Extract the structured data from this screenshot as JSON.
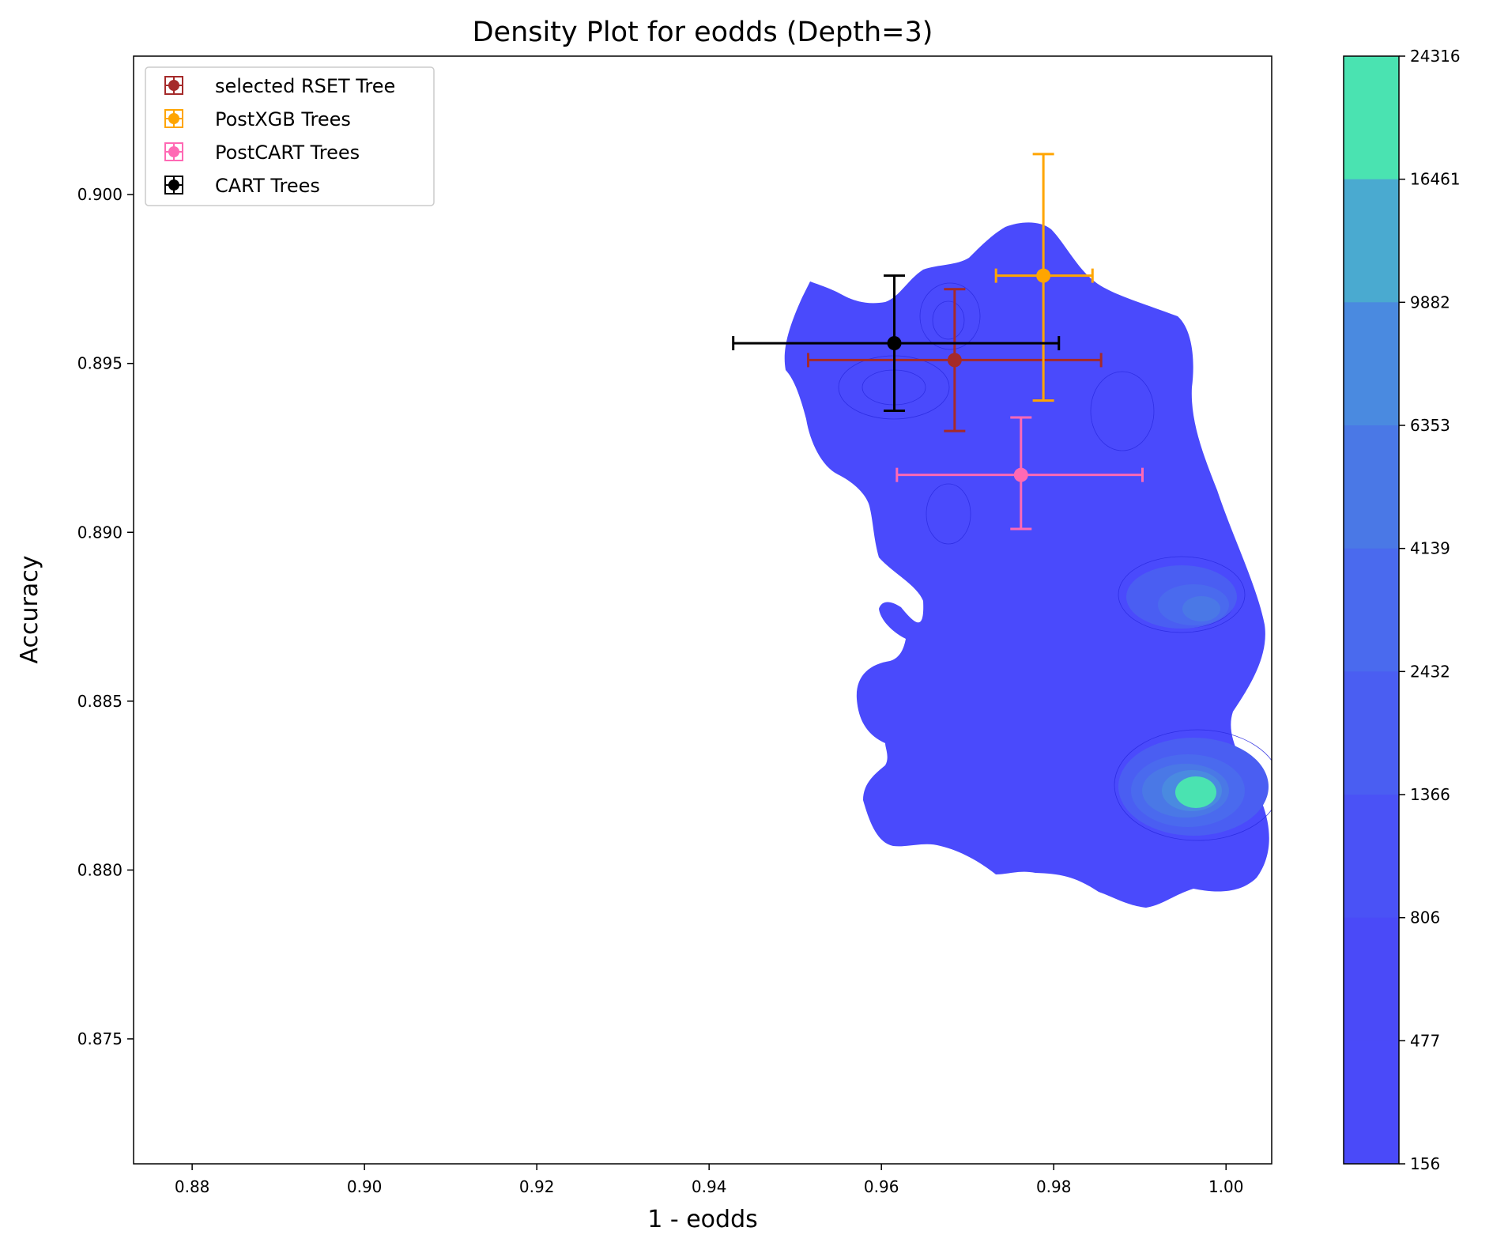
{
  "chart_data": {
    "type": "scatter",
    "title": "Density Plot for eodds (Depth=3)",
    "xlabel": "1 - eodds",
    "ylabel": "Accuracy",
    "xlim": [
      0.8732,
      1.0053
    ],
    "ylim": [
      0.8713,
      0.9041
    ],
    "x_ticks": [
      "0.88",
      "0.90",
      "0.92",
      "0.94",
      "0.96",
      "0.98",
      "1.00"
    ],
    "y_ticks": [
      "0.875",
      "0.880",
      "0.885",
      "0.890",
      "0.895",
      "0.900"
    ],
    "legend_position": "upper-left",
    "grid": false,
    "series": [
      {
        "name": "selected RSET Tree",
        "color": "#a52a2a",
        "x": 0.9685,
        "y": 0.8951,
        "x_err": [
          0.9515,
          0.9855
        ],
        "y_err": [
          0.893,
          0.8972
        ]
      },
      {
        "name": "PostXGB Trees",
        "color": "#ffa500",
        "x": 0.9788,
        "y": 0.8976,
        "x_err": [
          0.9733,
          0.9845
        ],
        "y_err": [
          0.8939,
          0.9012
        ]
      },
      {
        "name": "PostCART Trees",
        "color": "#ff69b4",
        "x": 0.9762,
        "y": 0.8917,
        "x_err": [
          0.9618,
          0.9903
        ],
        "y_err": [
          0.8901,
          0.8934
        ]
      },
      {
        "name": "CART Trees",
        "color": "#000000",
        "x": 0.9615,
        "y": 0.8956,
        "x_err": [
          0.9428,
          0.9806
        ],
        "y_err": [
          0.8936,
          0.8976
        ]
      }
    ],
    "density": {
      "colorbar_ticks": [
        "24316",
        "16461",
        "9882",
        "6353",
        "4139",
        "2432",
        "1366",
        "806",
        "477",
        "156"
      ],
      "colorbar_colors": [
        "#4ae3b1",
        "#4aaad0",
        "#4a8ae0",
        "#4a78e6",
        "#4a6aee",
        "#4a5ef2",
        "#4a52f6",
        "#4a4af8",
        "#4a4af9"
      ],
      "region_color": "#4a4afc",
      "peaks": [
        {
          "x": 0.9975,
          "y": 0.8821,
          "level": "24316"
        },
        {
          "x": 0.9965,
          "y": 0.8875,
          "level": "6353"
        },
        {
          "x": 0.9615,
          "y": 0.894,
          "level": "1366"
        },
        {
          "x": 0.9695,
          "y": 0.896,
          "level": "1366"
        }
      ]
    }
  }
}
